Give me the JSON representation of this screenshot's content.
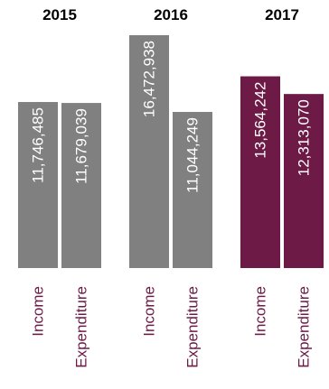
{
  "chart_data": {
    "type": "bar",
    "groups": [
      {
        "year": "2015",
        "color": "#808080",
        "categories": [
          "Income",
          "Expenditure"
        ],
        "values": [
          11746485,
          11679039
        ],
        "labels": [
          "11,746,485",
          "11,679,039"
        ]
      },
      {
        "year": "2016",
        "color": "#808080",
        "categories": [
          "Income",
          "Expenditure"
        ],
        "values": [
          16472938,
          11044249
        ],
        "labels": [
          "16,472,938",
          "11,044,249"
        ]
      },
      {
        "year": "2017",
        "color": "#6e1a46",
        "categories": [
          "Income",
          "Expenditure"
        ],
        "values": [
          13564242,
          12313070
        ],
        "labels": [
          "13,564,242",
          "12,313,070"
        ]
      }
    ],
    "category_label_color": "#6e1a46",
    "ylim": [
      0,
      16472938
    ],
    "grid": false,
    "legend": "none"
  }
}
